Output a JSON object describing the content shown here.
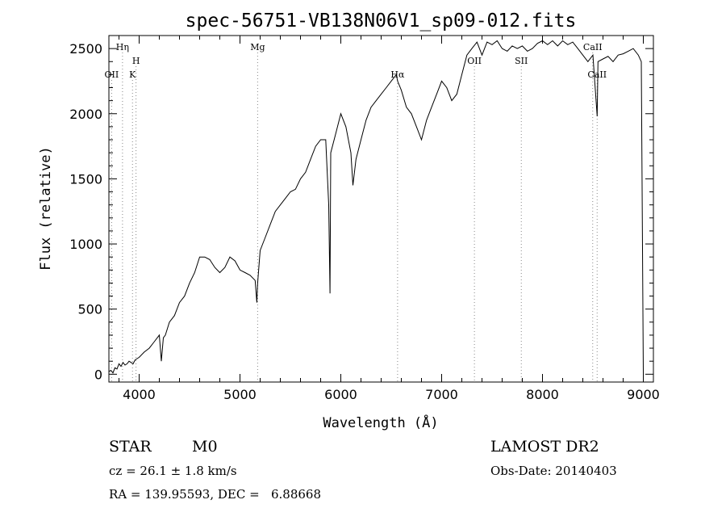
{
  "chart_data": {
    "type": "line",
    "title": "spec-56751-VB138N06V1_sp09-012.fits",
    "xlabel": "Wavelength (Å)",
    "ylabel": "Flux (relative)",
    "xlim": [
      3700,
      9100
    ],
    "ylim": [
      -60,
      2600
    ],
    "xticks": [
      4000,
      5000,
      6000,
      7000,
      8000,
      9000
    ],
    "yticks": [
      0,
      500,
      1000,
      1500,
      2000,
      2500
    ],
    "grid": false,
    "line_color": "#000000",
    "marker_color": "#888888",
    "series": [
      {
        "x": [
          3700,
          3720,
          3740,
          3760,
          3780,
          3800,
          3820,
          3840,
          3860,
          3880,
          3900,
          3920,
          3940,
          3960,
          3980,
          4000,
          4050,
          4100,
          4150,
          4200,
          4220,
          4240,
          4260,
          4300,
          4350,
          4400,
          4450,
          4500,
          4550,
          4600,
          4650,
          4700,
          4750,
          4800,
          4850,
          4900,
          4950,
          5000,
          5050,
          5100,
          5150,
          5167,
          5175,
          5200,
          5250,
          5300,
          5350,
          5400,
          5450,
          5500,
          5550,
          5600,
          5650,
          5700,
          5750,
          5800,
          5850,
          5880,
          5893,
          5900,
          5950,
          6000,
          6050,
          6100,
          6120,
          6150,
          6200,
          6250,
          6300,
          6350,
          6400,
          6450,
          6500,
          6550,
          6563,
          6600,
          6650,
          6700,
          6750,
          6800,
          6850,
          6900,
          6950,
          7000,
          7050,
          7100,
          7150,
          7200,
          7250,
          7300,
          7350,
          7400,
          7450,
          7500,
          7550,
          7600,
          7650,
          7700,
          7750,
          7800,
          7850,
          7900,
          7950,
          8000,
          8050,
          8100,
          8150,
          8200,
          8250,
          8300,
          8350,
          8400,
          8450,
          8500,
          8542,
          8550,
          8600,
          8650,
          8700,
          8750,
          8800,
          8850,
          8900,
          8950,
          8980,
          9000
        ],
        "y": [
          20,
          30,
          10,
          50,
          40,
          80,
          60,
          90,
          70,
          80,
          100,
          90,
          80,
          110,
          120,
          130,
          170,
          200,
          250,
          300,
          100,
          280,
          300,
          400,
          450,
          550,
          600,
          700,
          780,
          900,
          900,
          880,
          820,
          780,
          820,
          900,
          870,
          800,
          780,
          760,
          720,
          550,
          700,
          950,
          1050,
          1150,
          1250,
          1300,
          1350,
          1400,
          1420,
          1500,
          1550,
          1650,
          1750,
          1800,
          1800,
          1300,
          620,
          1700,
          1850,
          2000,
          1900,
          1700,
          1450,
          1650,
          1800,
          1950,
          2050,
          2100,
          2150,
          2200,
          2250,
          2300,
          2250,
          2180,
          2050,
          2000,
          1900,
          1800,
          1950,
          2050,
          2150,
          2250,
          2200,
          2100,
          2150,
          2300,
          2450,
          2500,
          2550,
          2450,
          2550,
          2530,
          2560,
          2500,
          2480,
          2520,
          2500,
          2520,
          2480,
          2500,
          2540,
          2560,
          2530,
          2560,
          2520,
          2560,
          2530,
          2550,
          2500,
          2450,
          2400,
          2450,
          1980,
          2400,
          2420,
          2440,
          2400,
          2450,
          2460,
          2480,
          2500,
          2450,
          2400,
          0
        ]
      }
    ],
    "line_markers": [
      {
        "label": "OII",
        "x": 3727,
        "row": 3
      },
      {
        "label": "Hη",
        "x": 3835,
        "row": 1
      },
      {
        "label": "K",
        "x": 3934,
        "row": 3
      },
      {
        "label": "H",
        "x": 3969,
        "row": 2
      },
      {
        "label": "Mg",
        "x": 5175,
        "row": 1
      },
      {
        "label": "Hα",
        "x": 6563,
        "row": 3
      },
      {
        "label": "OII",
        "x": 7325,
        "row": 2
      },
      {
        "label": "SII",
        "x": 7790,
        "row": 2
      },
      {
        "label": "CaII",
        "x": 8498,
        "row": 1
      },
      {
        "label": "CaII",
        "x": 8542,
        "row": 3
      }
    ]
  },
  "footer": {
    "object_class": "STAR",
    "subclass": "M0",
    "survey": "LAMOST DR2",
    "cz": "cz = 26.1 ± 1.8 km/s",
    "obs_date": "Obs-Date: 20140403",
    "coords": "RA = 139.95593, DEC =   6.88668"
  }
}
